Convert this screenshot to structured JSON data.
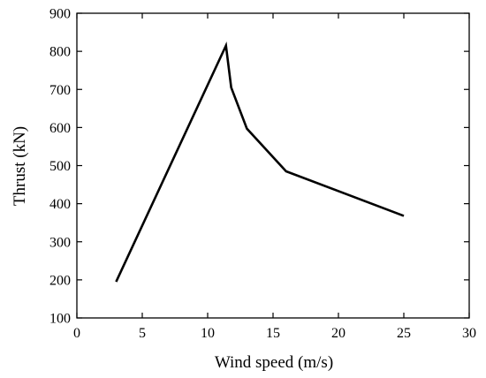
{
  "chart_data": {
    "type": "line",
    "title": "",
    "xlabel": "Wind speed (m/s)",
    "ylabel": "Thrust (kN)",
    "xlim": [
      0,
      30
    ],
    "ylim": [
      100,
      900
    ],
    "xticks": [
      0,
      5,
      10,
      15,
      20,
      25,
      30
    ],
    "yticks": [
      100,
      200,
      300,
      400,
      500,
      600,
      700,
      800,
      900
    ],
    "grid": false,
    "legend": "none",
    "series": [
      {
        "color": "#000000",
        "x": [
          3,
          11.4,
          11.8,
          13,
          16,
          25
        ],
        "y": [
          195,
          815,
          705,
          597,
          485,
          368
        ]
      }
    ]
  }
}
